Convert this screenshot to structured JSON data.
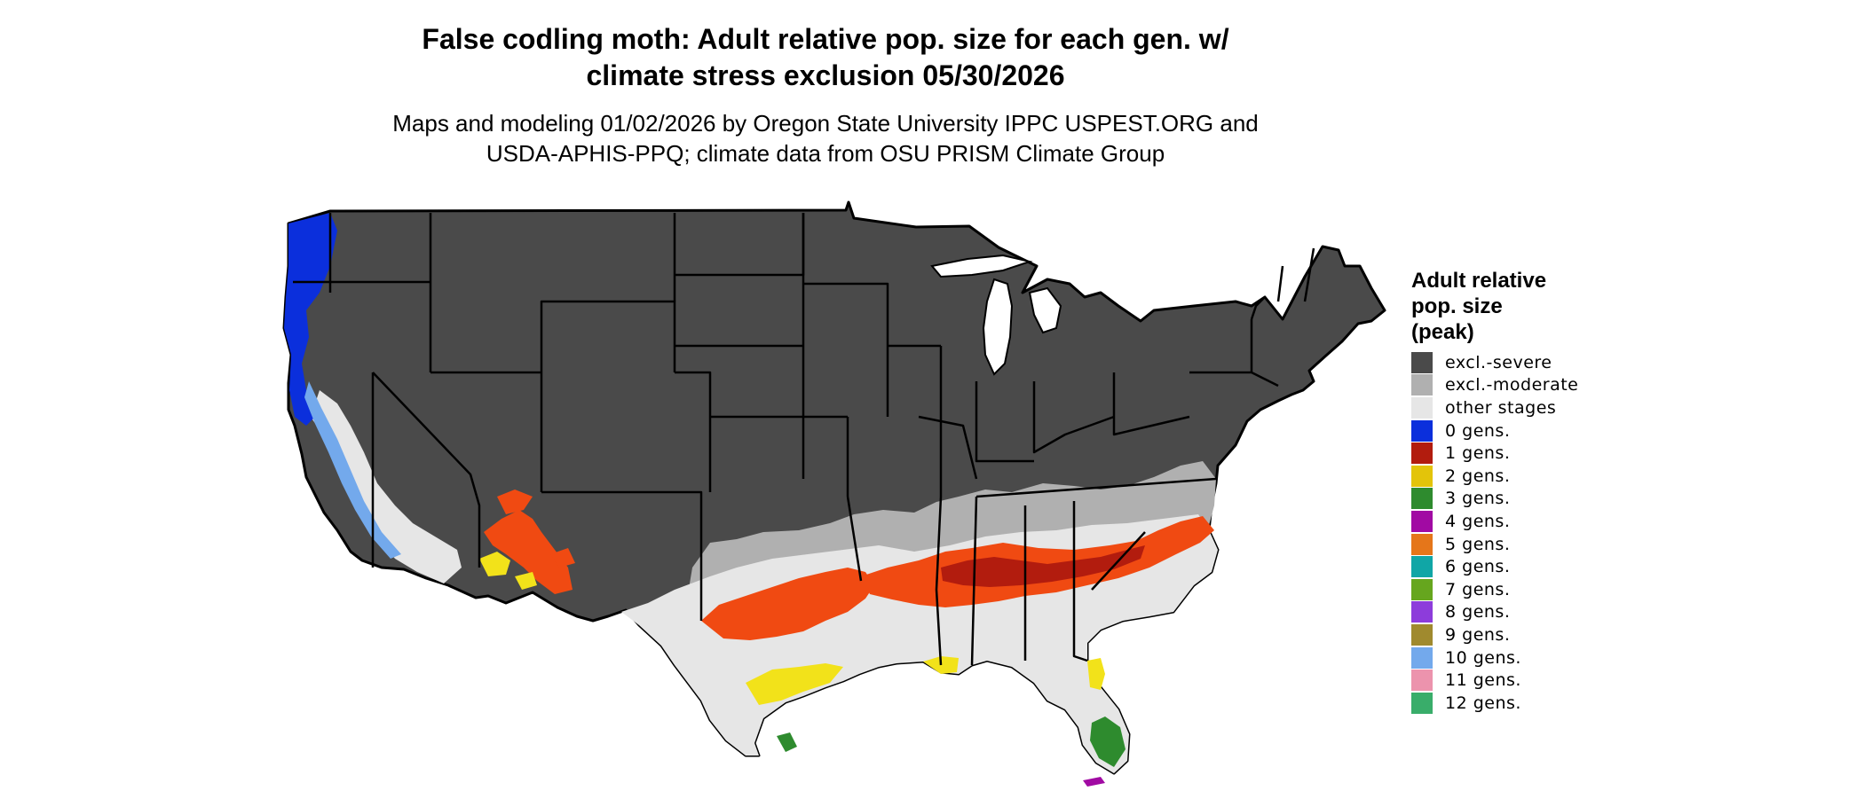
{
  "title_line1": "False codling moth: Adult relative pop. size for each gen. w/",
  "title_line2": "climate stress exclusion 05/30/2026",
  "subtitle_line1": "Maps and modeling 01/02/2026 by Oregon State University IPPC USPEST.ORG and",
  "subtitle_line2": "USDA-APHIS-PPQ; climate data from OSU PRISM Climate Group",
  "legend": {
    "title_lines": [
      "Adult relative",
      "pop. size",
      "(peak)"
    ],
    "items": [
      {
        "label": "excl.-severe",
        "color": "#4a4a4a"
      },
      {
        "label": "excl.-moderate",
        "color": "#b0b0b0"
      },
      {
        "label": "other stages",
        "color": "#e6e6e6"
      },
      {
        "label": "0 gens.",
        "color": "#0b2fdc"
      },
      {
        "label": "1 gens.",
        "color": "#b21c0e"
      },
      {
        "label": "2 gens.",
        "color": "#e3c40a"
      },
      {
        "label": "3 gens.",
        "color": "#2e8b2e"
      },
      {
        "label": "4 gens.",
        "color": "#a10aa3"
      },
      {
        "label": "5 gens.",
        "color": "#e5761a"
      },
      {
        "label": "6 gens.",
        "color": "#10a6a6"
      },
      {
        "label": "7 gens.",
        "color": "#66a61e"
      },
      {
        "label": "8 gens.",
        "color": "#8d3cdb"
      },
      {
        "label": "9 gens.",
        "color": "#a08a2e"
      },
      {
        "label": "10 gens.",
        "color": "#73a9ec"
      },
      {
        "label": "11 gens.",
        "color": "#ec93ad"
      },
      {
        "label": "12 gens.",
        "color": "#39ad6a"
      }
    ]
  },
  "map_colors": {
    "severe": "#4a4a4a",
    "moderate": "#b0b0b0",
    "other": "#e6e6e6",
    "gen0": "#0b2fdc",
    "gen1_bright": "#f04a12",
    "gen1_dark": "#b21c0e",
    "gen2": "#f2e21a",
    "gen3": "#2e8b2e",
    "gen4": "#a10aa3",
    "light_blue": "#73a9ec",
    "border": "#000000"
  }
}
